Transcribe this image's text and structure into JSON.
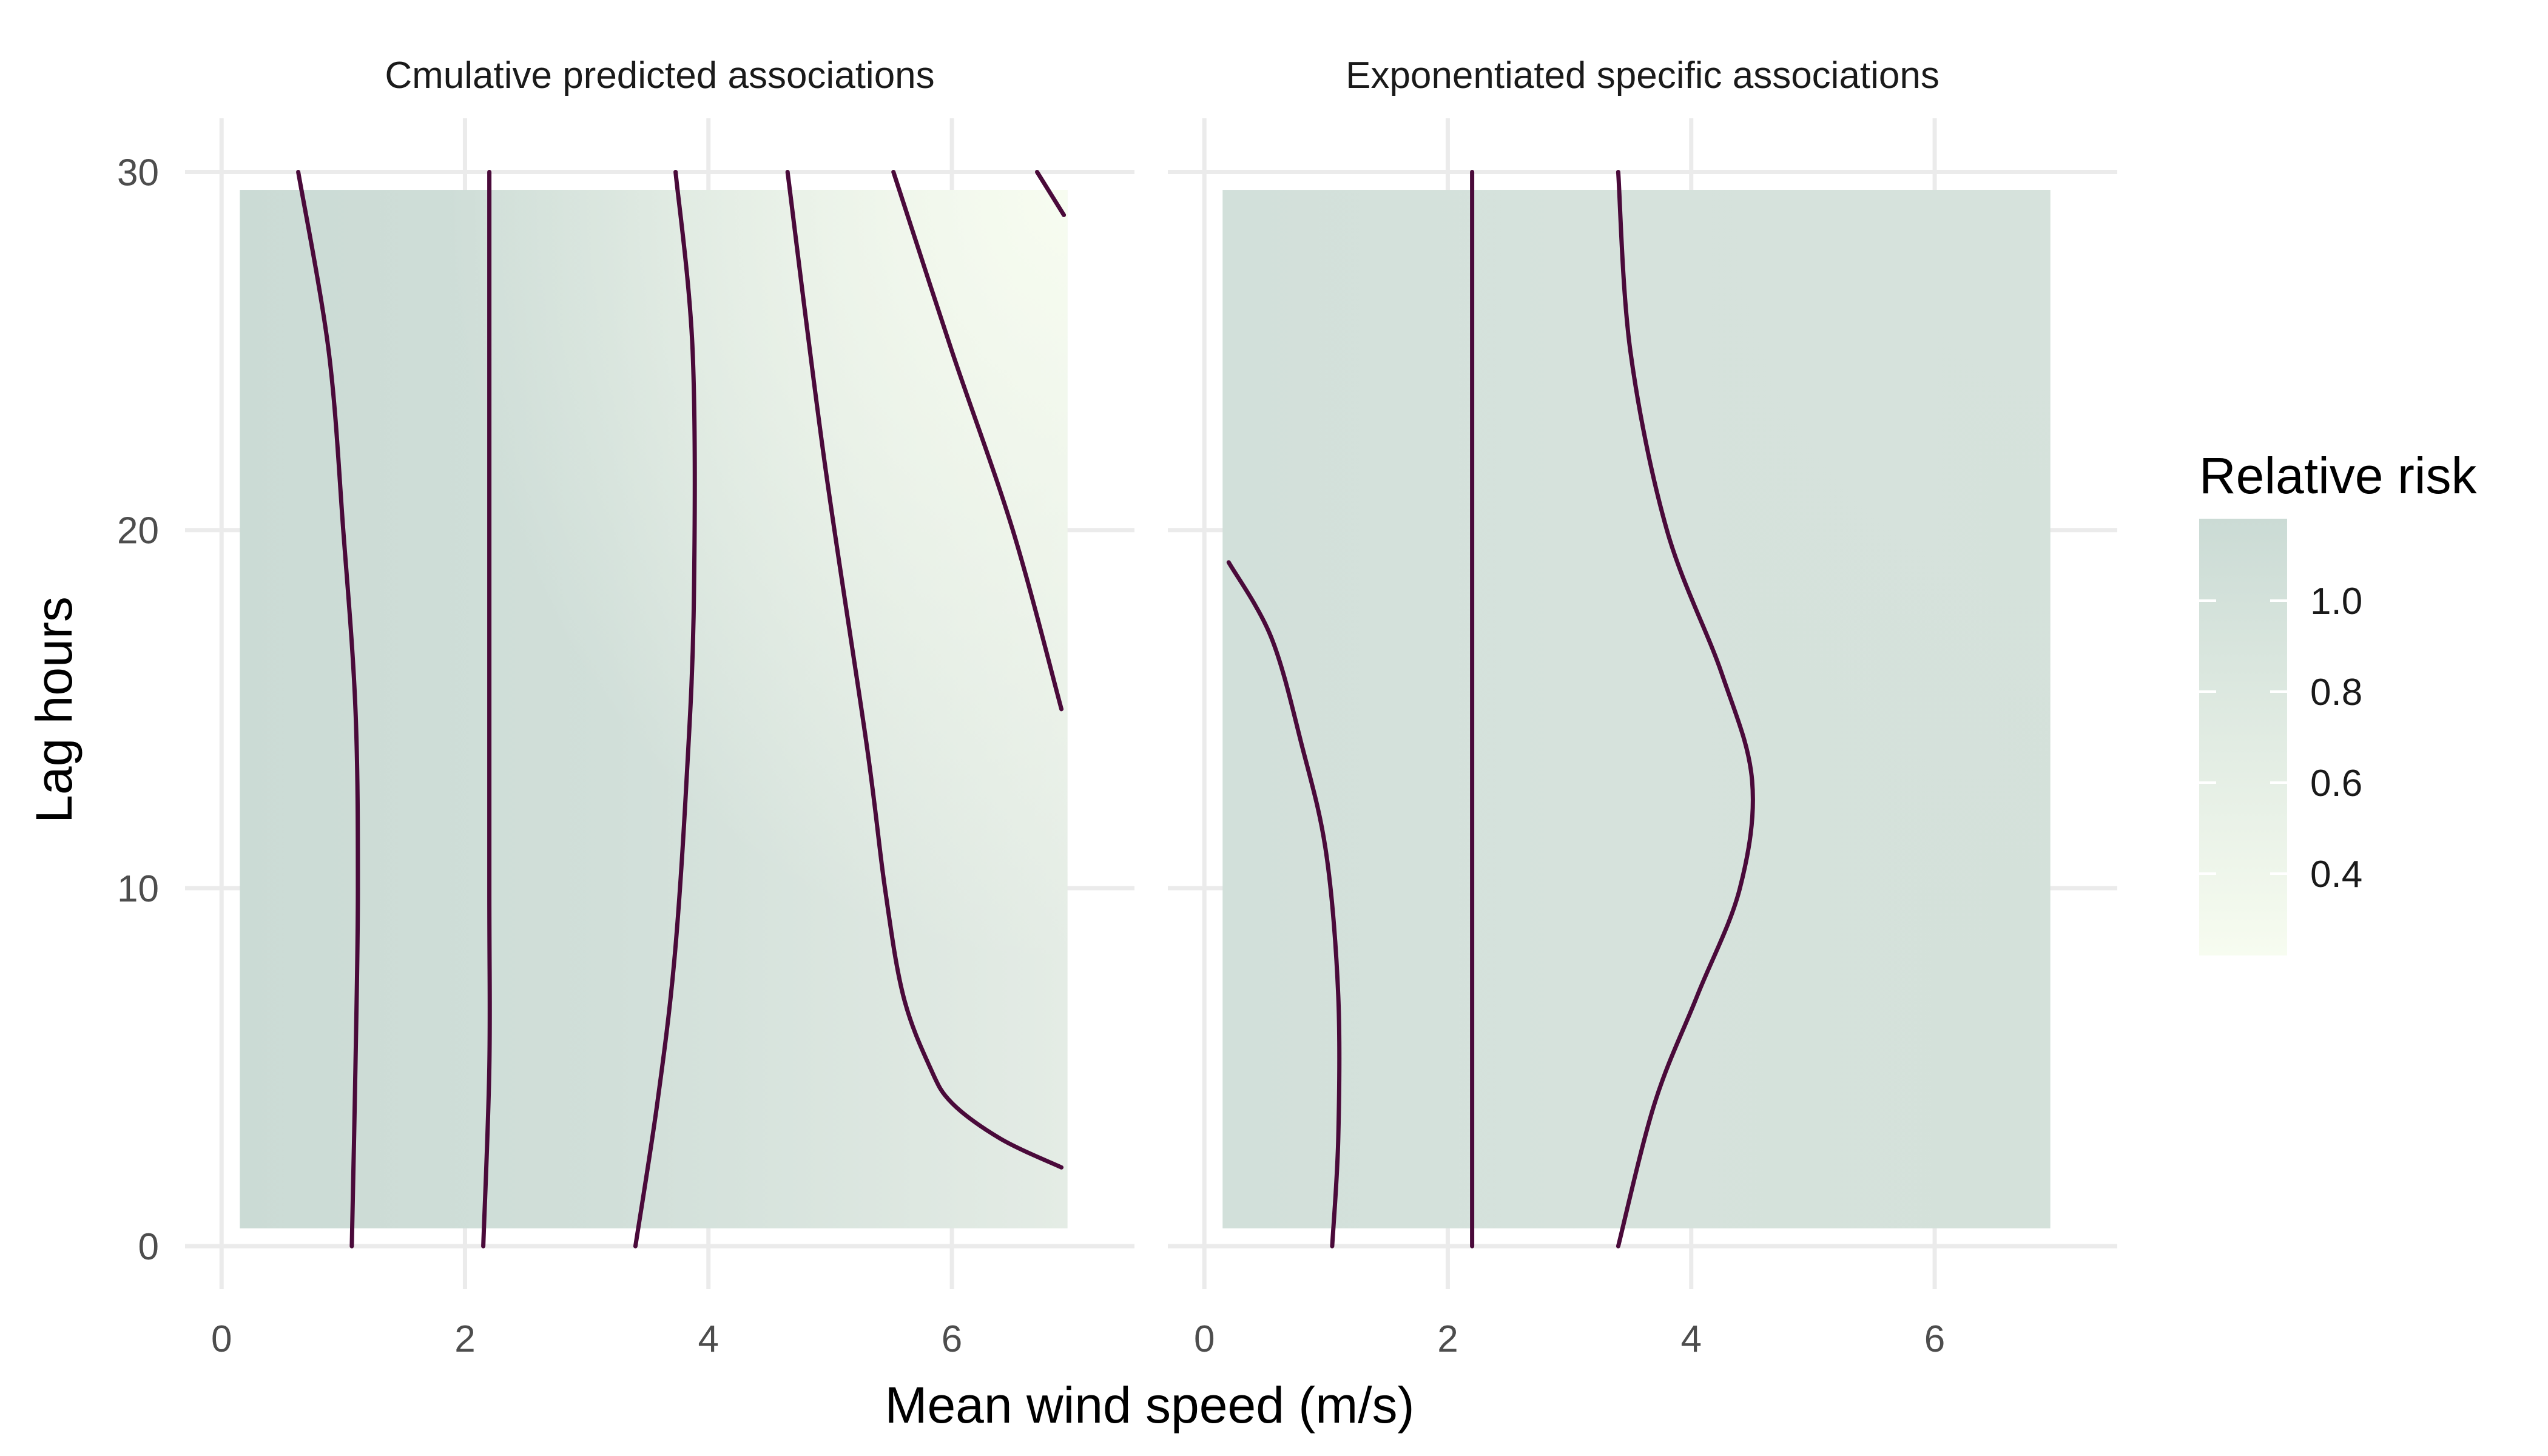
{
  "chart_data": {
    "type": "heatmap",
    "xlabel": "Mean wind speed (m/s)",
    "ylabel": "Lag hours",
    "legend": {
      "title": "Relative risk",
      "position": "right",
      "labels": [
        "1.0",
        "0.8",
        "0.6",
        "0.4"
      ],
      "values": [
        1.0,
        0.8,
        0.6,
        0.4
      ],
      "range": [
        0.22,
        1.18
      ],
      "color_low": "#f7fcf0",
      "color_high": "#cbdbd5"
    },
    "xlim": [
      -0.3,
      7.5
    ],
    "ylim": [
      -1.2,
      31.5
    ],
    "x_ticks": [
      0,
      2,
      4,
      6
    ],
    "x_tick_labels": [
      "0",
      "2",
      "4",
      "6"
    ],
    "y_ticks": [
      0,
      10,
      20,
      30
    ],
    "y_tick_labels": [
      "0",
      "10",
      "20",
      "30"
    ],
    "grid": true,
    "contour_color": "#4a0a3a",
    "panels": [
      {
        "title": "Cmulative predicted associations",
        "tile_extent": {
          "x": [
            0.15,
            6.95
          ],
          "y": [
            0.5,
            29.5
          ]
        },
        "colors": {
          "left": "#cbdbd5",
          "mid": "#d1dfd9",
          "right_bottom": "#e4ece5",
          "right_top": "#f7fcf0"
        },
        "contours": [
          [
            [
              0.63,
              30
            ],
            [
              0.88,
              25
            ],
            [
              1.0,
              20
            ],
            [
              1.1,
              15
            ],
            [
              1.12,
              10
            ],
            [
              1.1,
              5
            ],
            [
              1.07,
              0
            ]
          ],
          [
            [
              2.2,
              30
            ],
            [
              2.2,
              20
            ],
            [
              2.2,
              10
            ],
            [
              2.2,
              5
            ],
            [
              2.15,
              0
            ]
          ],
          [
            [
              3.73,
              30
            ],
            [
              3.87,
              25
            ],
            [
              3.88,
              18
            ],
            [
              3.82,
              13
            ],
            [
              3.72,
              8
            ],
            [
              3.58,
              4
            ],
            [
              3.4,
              0
            ]
          ],
          [
            [
              4.65,
              30
            ],
            [
              4.95,
              22
            ],
            [
              5.3,
              14
            ],
            [
              5.45,
              10
            ],
            [
              5.6,
              7
            ],
            [
              5.82,
              5
            ],
            [
              6.0,
              4
            ],
            [
              6.4,
              3
            ],
            [
              6.9,
              2.2
            ]
          ],
          [
            [
              5.52,
              30
            ],
            [
              6.0,
              25
            ],
            [
              6.5,
              20
            ],
            [
              6.9,
              15
            ]
          ],
          [
            [
              6.7,
              30
            ],
            [
              6.92,
              28.8
            ]
          ]
        ]
      },
      {
        "title": "Exponentiated specific associations",
        "tile_extent": {
          "x": [
            0.15,
            6.95
          ],
          "y": [
            0.5,
            29.5
          ]
        },
        "colors": {
          "left": "#d2e0da",
          "mid": "#d6e2dc",
          "right_bottom": "#d4e1da",
          "right_top": "#d6e2dc"
        },
        "contours": [
          [
            [
              0.2,
              19.1
            ],
            [
              0.55,
              17
            ],
            [
              0.8,
              14
            ],
            [
              1.0,
              11
            ],
            [
              1.1,
              7
            ],
            [
              1.1,
              3
            ],
            [
              1.05,
              0
            ]
          ],
          [
            [
              2.2,
              30
            ],
            [
              2.2,
              15
            ],
            [
              2.2,
              0
            ]
          ],
          [
            [
              3.4,
              30
            ],
            [
              3.5,
              25
            ],
            [
              3.8,
              20
            ],
            [
              4.25,
              16
            ],
            [
              4.5,
              13
            ],
            [
              4.4,
              10
            ],
            [
              4.05,
              7
            ],
            [
              3.7,
              4
            ],
            [
              3.4,
              0
            ]
          ]
        ]
      }
    ]
  }
}
